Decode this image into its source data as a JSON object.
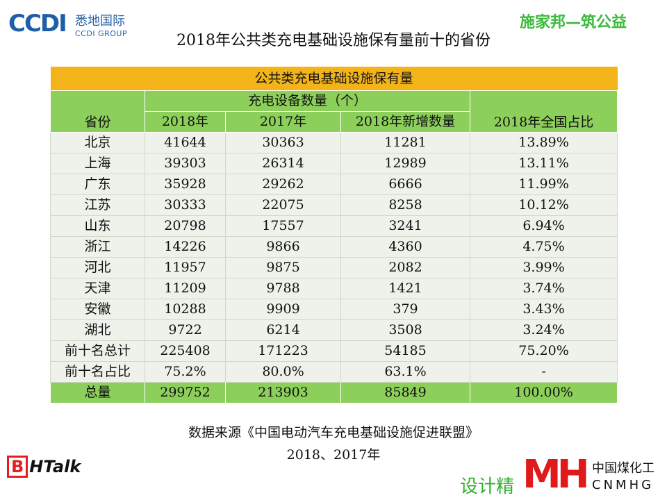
{
  "logo": {
    "mark": "CCDI",
    "cn": "悉地国际",
    "en": "CCDI GROUP"
  },
  "brand_top_right": "施家邦—筑公益",
  "title": "2018年公共类充电基础设施保有量前十的省份",
  "table": {
    "title": "公共类充电基础设施保有量",
    "header_province": "省份",
    "header_group": "充电设备数量（个）",
    "header_share": "2018年全国占比",
    "sub_headers": [
      "2018年",
      "2017年",
      "2018年新增数量"
    ],
    "rows": [
      [
        "北京",
        "41644",
        "30363",
        "11281",
        "13.89%"
      ],
      [
        "上海",
        "39303",
        "26314",
        "12989",
        "13.11%"
      ],
      [
        "广东",
        "35928",
        "29262",
        "6666",
        "11.99%"
      ],
      [
        "江苏",
        "30333",
        "22075",
        "8258",
        "10.12%"
      ],
      [
        "山东",
        "20798",
        "17557",
        "3241",
        "6.94%"
      ],
      [
        "浙江",
        "14226",
        "9866",
        "4360",
        "4.75%"
      ],
      [
        "河北",
        "11957",
        "9875",
        "2082",
        "3.99%"
      ],
      [
        "天津",
        "11209",
        "9788",
        "1421",
        "3.74%"
      ],
      [
        "安徽",
        "10288",
        "9909",
        "379",
        "3.43%"
      ],
      [
        "湖北",
        "9722",
        "6214",
        "3508",
        "3.24%"
      ],
      [
        "前十名总计",
        "225408",
        "171223",
        "54185",
        "75.20%"
      ],
      [
        "前十名占比",
        "75.2%",
        "80.0%",
        "63.1%",
        "-"
      ]
    ],
    "total": [
      "总量",
      "299752",
      "213903",
      "85849",
      "100.00%"
    ]
  },
  "source": "数据来源《中国电动汽车充电基础设施促进联盟》",
  "source_years": "2018、2017年",
  "bottom_left_logo": {
    "b": "B",
    "rest": "HTalk"
  },
  "bottom_right": {
    "design_text": "设计精",
    "mark": "MH",
    "cn": "中国煤化工",
    "en": "CNMHG"
  }
}
